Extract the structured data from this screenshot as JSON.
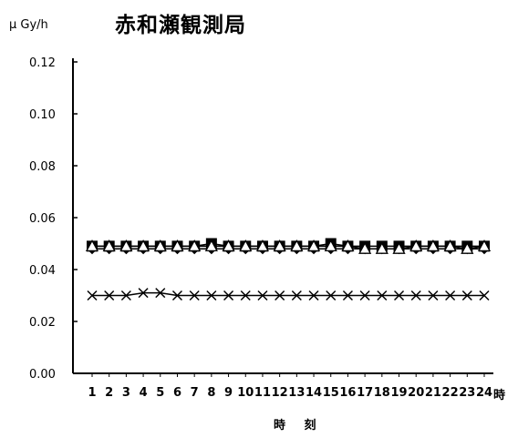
{
  "chart_data": {
    "type": "line",
    "title": "赤和瀬観測局",
    "ylabel": "μ Gy/h",
    "xlabel": "時 刻",
    "x_unit": "時",
    "ylim": [
      0,
      0.12
    ],
    "yticks": [
      "0.00",
      "0.02",
      "0.04",
      "0.06",
      "0.08",
      "0.10",
      "0.12"
    ],
    "categories": [
      "1",
      "2",
      "3",
      "4",
      "5",
      "6",
      "7",
      "8",
      "9",
      "10",
      "11",
      "12",
      "13",
      "14",
      "15",
      "16",
      "17",
      "18",
      "19",
      "20",
      "21",
      "22",
      "23",
      "24"
    ],
    "series": [
      {
        "marker": "square",
        "color": "#000000",
        "values": [
          0.049,
          0.049,
          0.049,
          0.049,
          0.049,
          0.049,
          0.049,
          0.05,
          0.049,
          0.049,
          0.049,
          0.049,
          0.049,
          0.049,
          0.05,
          0.049,
          0.049,
          0.049,
          0.049,
          0.049,
          0.049,
          0.049,
          0.049,
          0.049
        ]
      },
      {
        "marker": "diamond",
        "color": "#000000",
        "values": [
          0.048,
          0.048,
          0.048,
          0.048,
          0.048,
          0.048,
          0.048,
          0.048,
          0.048,
          0.048,
          0.048,
          0.048,
          0.048,
          0.048,
          0.048,
          0.048,
          0.048,
          0.048,
          0.048,
          0.048,
          0.048,
          0.048,
          0.048,
          0.048
        ]
      },
      {
        "marker": "triangle",
        "color": "#000000",
        "values": [
          0.049,
          0.049,
          0.049,
          0.049,
          0.049,
          0.049,
          0.049,
          0.049,
          0.049,
          0.049,
          0.049,
          0.049,
          0.049,
          0.049,
          0.049,
          0.049,
          0.048,
          0.048,
          0.048,
          0.049,
          0.049,
          0.049,
          0.048,
          0.049
        ]
      },
      {
        "marker": "x",
        "color": "#000000",
        "values": [
          0.03,
          0.03,
          0.03,
          0.031,
          0.031,
          0.03,
          0.03,
          0.03,
          0.03,
          0.03,
          0.03,
          0.03,
          0.03,
          0.03,
          0.03,
          0.03,
          0.03,
          0.03,
          0.03,
          0.03,
          0.03,
          0.03,
          0.03,
          0.03
        ]
      }
    ]
  }
}
